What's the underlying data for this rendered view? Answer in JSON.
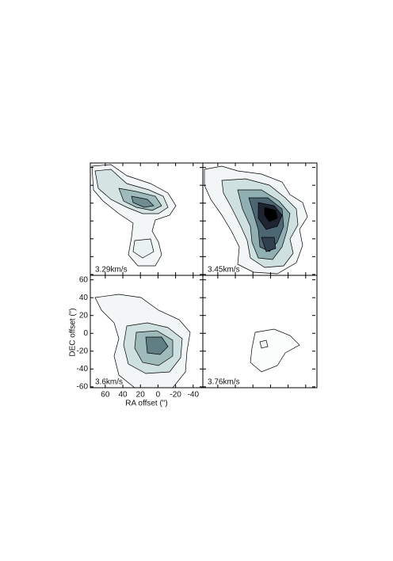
{
  "chart_data": {
    "type": "contour",
    "x_label": "RA offset (\")",
    "y_label": "DEC offset (\")",
    "xlim": [
      77,
      -51
    ],
    "ylim": [
      -61,
      65
    ],
    "xticks": [
      60,
      40,
      20,
      0,
      -20,
      -40
    ],
    "yticks": [
      60,
      40,
      20,
      0,
      -20,
      -40,
      -60
    ],
    "panels": [
      {
        "label": "3.29km/s"
      },
      {
        "label": "3.45km/s"
      },
      {
        "label": "3.6km/s"
      },
      {
        "label": "3.76km/s"
      }
    ]
  }
}
